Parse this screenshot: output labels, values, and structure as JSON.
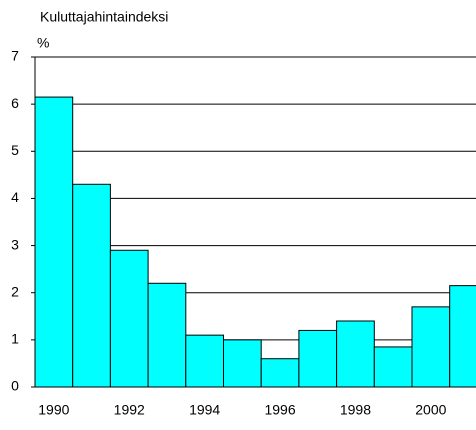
{
  "chart_data": {
    "type": "bar",
    "title": "Kuluttajahintaindeksi",
    "y_label": "%",
    "categories": [
      "1990",
      null,
      "1992",
      null,
      "1994",
      null,
      "1996",
      null,
      "1998",
      null,
      "2000",
      null
    ],
    "values": [
      6.15,
      4.3,
      2.9,
      2.2,
      1.1,
      1.0,
      0.6,
      1.2,
      1.4,
      0.85,
      1.7,
      2.15
    ],
    "color": "#00ffff",
    "ylim": [
      0,
      7
    ],
    "yticks": [
      0,
      1,
      2,
      3,
      4,
      5,
      6,
      7
    ],
    "grid": true
  }
}
